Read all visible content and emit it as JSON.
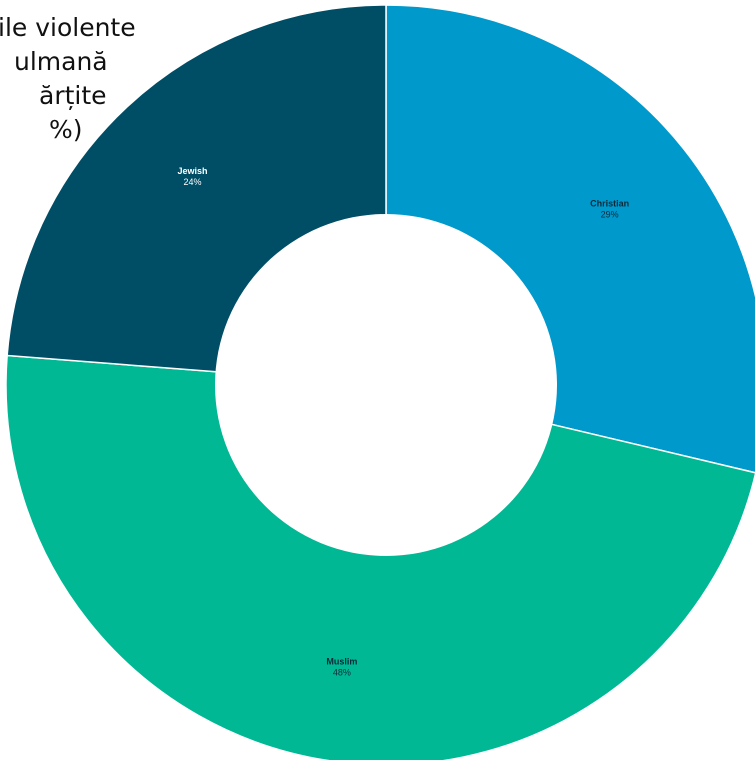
{
  "title": {
    "lines": [
      "ile violente",
      "ulmană",
      "ărțite",
      "%)"
    ]
  },
  "chart_data": {
    "type": "pie",
    "donut": true,
    "title": "ile violente ulmană ărțite %)",
    "slices": [
      {
        "label": "Christian",
        "value_label": "29%",
        "value": 29,
        "color": "#0099cc",
        "text_color": "#0b2a3a"
      },
      {
        "label": "Muslim",
        "value_label": "48%",
        "value": 48,
        "color": "#00b894",
        "text_color": "#0b2a3a"
      },
      {
        "label": "Jewish",
        "value_label": "24%",
        "value": 24,
        "color": "#004d66",
        "text_color": "#ffffff"
      }
    ],
    "separator_color": "#ffffff",
    "legend": "none"
  }
}
